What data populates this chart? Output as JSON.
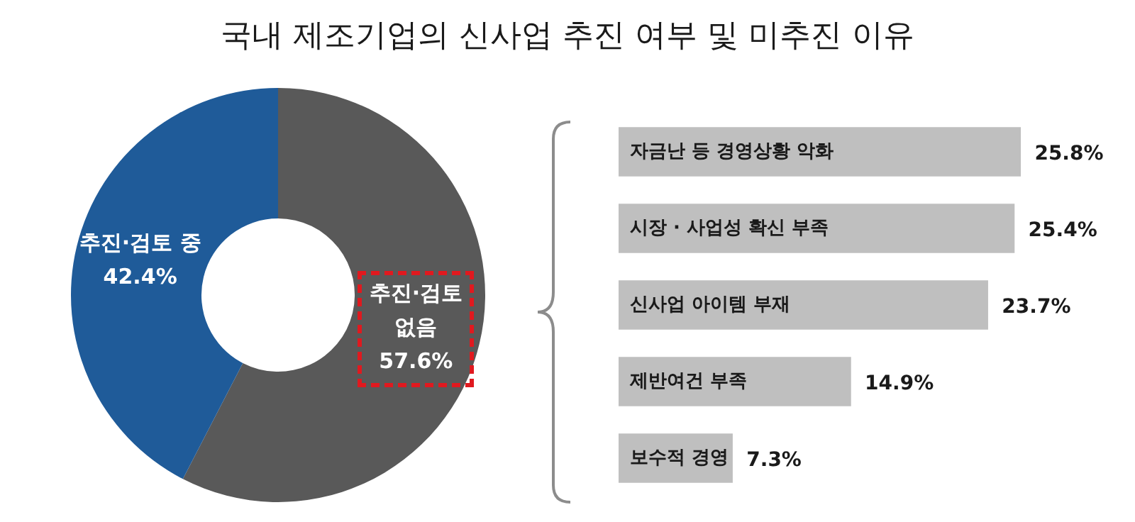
{
  "chart_data": [
    {
      "type": "donut",
      "title": "국내 제조기업의 신사업 추진 여부 및 미추진 이유",
      "categories": [
        "추진·검토 없음",
        "추진·검토 중"
      ],
      "values": [
        57.6,
        42.4
      ],
      "colors": [
        "#595959",
        "#1f5b99"
      ],
      "value_labels": [
        "57.6%",
        "42.4%"
      ],
      "legend": false
    },
    {
      "type": "bar",
      "orientation": "horizontal",
      "categories": [
        "자금난 등 경영상황 악화",
        "시장 · 사업성 확신 부족",
        "신사업 아이템 부재",
        "제반여건 부족",
        "보수적 경영"
      ],
      "values": [
        25.8,
        25.4,
        23.7,
        14.9,
        7.3
      ],
      "color": "#bfbfbf",
      "value_labels": [
        "25.8%",
        "25.4%",
        "23.7%",
        "14.9%",
        "7.3%"
      ],
      "tick_labels": "y",
      "grid": false,
      "legend": false
    }
  ]
}
